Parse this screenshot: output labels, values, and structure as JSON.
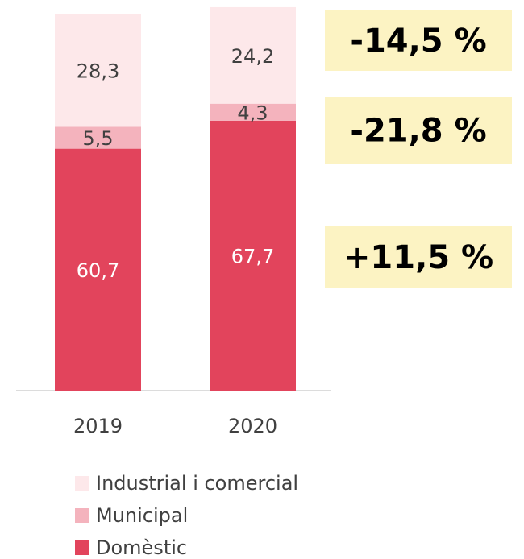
{
  "chart_data": {
    "type": "stacked_bar",
    "categories": [
      "2019",
      "2020"
    ],
    "series": [
      {
        "name": "Domèstic",
        "color": "#e2445c",
        "values": [
          60.7,
          67.7
        ],
        "value_labels": [
          "60,7",
          "67,7"
        ],
        "label_color": "#ffffff"
      },
      {
        "name": "Municipal",
        "color": "#f4b3bd",
        "values": [
          5.5,
          4.3
        ],
        "value_labels": [
          "5,5",
          "4,3"
        ],
        "label_color": "#404040"
      },
      {
        "name": "Industrial i comercial",
        "color": "#fde8ea",
        "values": [
          28.3,
          24.2
        ],
        "value_labels": [
          "28,3",
          "24,2"
        ],
        "label_color": "#404040"
      }
    ],
    "ylim": [
      0,
      97
    ],
    "annotations": [
      "-14,5 %",
      "-21,8 %",
      "+11,5 %"
    ]
  }
}
